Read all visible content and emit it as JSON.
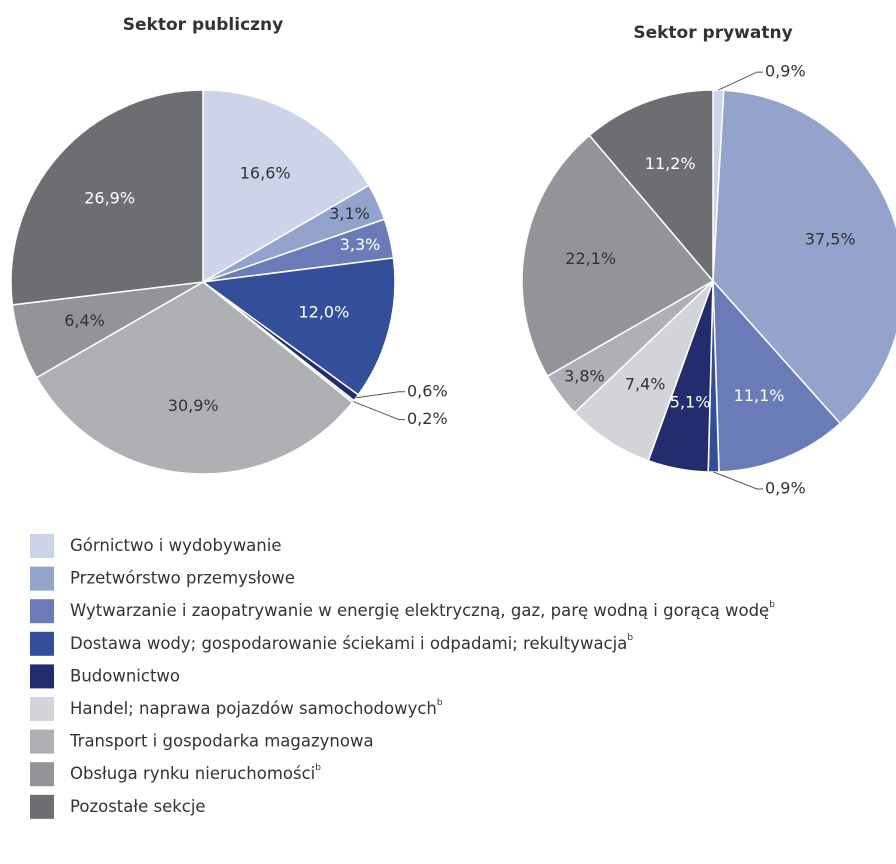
{
  "chart_data": [
    {
      "type": "pie",
      "title": "Sektor publiczny",
      "categories": [
        "Górnictwo i wydobywanie",
        "Przetwórstwo przemysłowe",
        "Wytwarzanie i zaopatrywanie w energię elektryczną, gaz, parę wodną i gorącą wodę",
        "Dostawa wody; gospodarowanie ściekami i odpadami; rekultywacja",
        "Budownictwo",
        "Handel; naprawa pojazdów samochodowych",
        "Transport i gospodarka magazynowa",
        "Obsługa rynku nieruchomości",
        "Pozostałe sekcje"
      ],
      "category_notes": [
        null,
        null,
        "b",
        "b",
        null,
        "b",
        null,
        "b",
        null
      ],
      "colors": [
        "#cdd3e8",
        "#93a3cc",
        "#6a7cb8",
        "#344f9a",
        "#232d6e",
        "#d3d4d8",
        "#afb0b4",
        "#939498",
        "#6d6e72"
      ],
      "values": [
        16.6,
        3.1,
        3.3,
        12.0,
        0.6,
        0.2,
        30.9,
        6.4,
        26.9
      ],
      "value_labels": [
        "16,6%",
        "3,1%",
        "3,3%",
        "12,0%",
        "0,6%",
        "0,2%",
        "30,9%",
        "6,4%",
        "26,9%"
      ]
    },
    {
      "type": "pie",
      "title": "Sektor prywatny",
      "colors": [
        "#cdd3e8",
        "#93a3cc",
        "#6a7cb8",
        "#344f9a",
        "#232d6e",
        "#d3d4d8",
        "#afb0b4",
        "#939498",
        "#6d6e72"
      ],
      "values": [
        0.9,
        37.5,
        11.1,
        0.9,
        5.1,
        7.4,
        3.8,
        22.1,
        11.2
      ],
      "value_labels": [
        "0,9%",
        "37,5%",
        "11,1%",
        "0,9%",
        "5,1%",
        "7,4%",
        "3,8%",
        "22,1%",
        "11,2%"
      ]
    }
  ]
}
